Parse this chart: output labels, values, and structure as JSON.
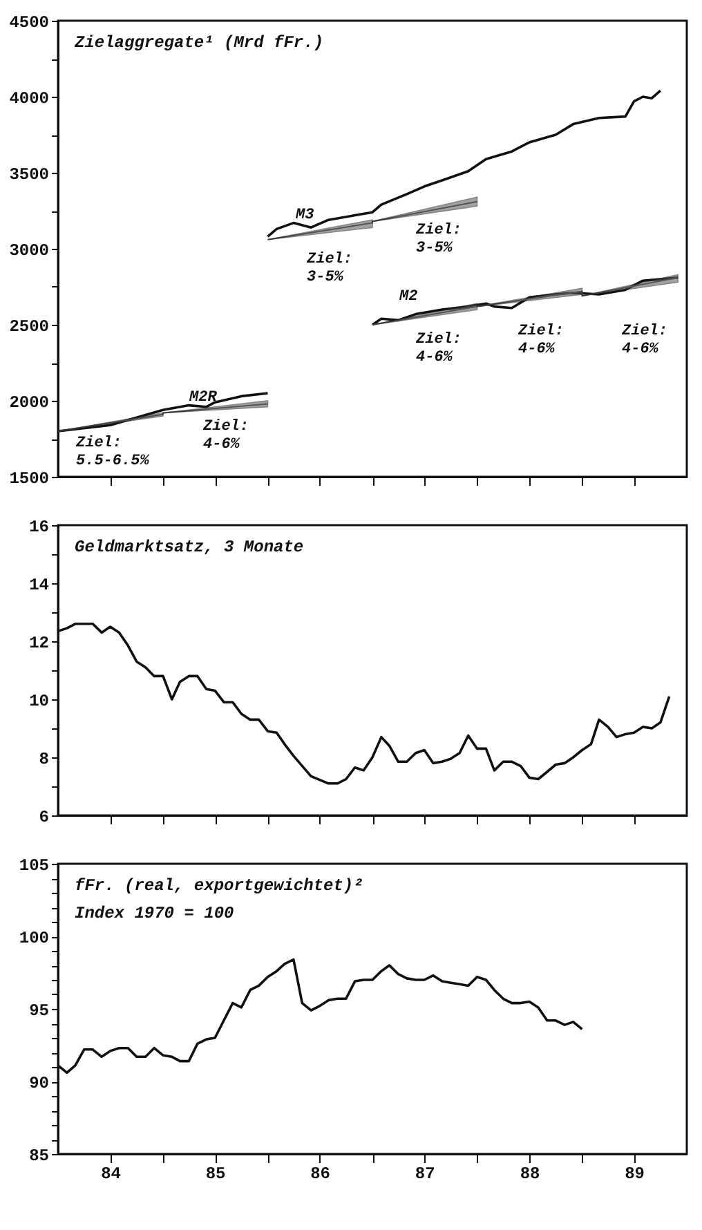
{
  "chart_data": [
    {
      "type": "line",
      "title": "Zielaggregate¹ (Mrd fFr.)",
      "xlim": [
        "1984-01",
        "1990-01"
      ],
      "ylim": [
        1500,
        4500
      ],
      "tick_labels": "y",
      "xticks": [
        {
          "value": "1984-07",
          "label": null
        },
        {
          "value": "1985-01",
          "label": null
        },
        {
          "value": "1985-07",
          "label": null
        },
        {
          "value": "1986-01",
          "label": null
        },
        {
          "value": "1986-07",
          "label": null
        },
        {
          "value": "1987-01",
          "label": null
        },
        {
          "value": "1987-07",
          "label": null
        },
        {
          "value": "1988-01",
          "label": null
        },
        {
          "value": "1988-07",
          "label": null
        },
        {
          "value": "1989-01",
          "label": null
        },
        {
          "value": "1989-07",
          "label": null
        }
      ],
      "yticks": [
        1500,
        {
          "value": 1750,
          "label": null
        },
        2000,
        {
          "value": 2250,
          "label": null
        },
        2500,
        {
          "value": 2750,
          "label": null
        },
        3000,
        {
          "value": 3250,
          "label": null
        },
        3500,
        {
          "value": 3750,
          "label": null
        },
        4000,
        {
          "value": 4250,
          "label": null
        },
        4500
      ],
      "series": [
        {
          "color": "#111111",
          "x": [
            "1984-01",
            "1984-07",
            "1984-10",
            "1985-01",
            "1985-04",
            "1985-06",
            "1985-07",
            "1985-10",
            "1986-01"
          ],
          "values": [
            1800,
            1840,
            1890,
            1940,
            1970,
            1960,
            1990,
            2030,
            2050
          ]
        },
        {
          "color": "#111111",
          "x": [
            "1986-01",
            "1986-02",
            "1986-04",
            "1986-06",
            "1986-08",
            "1986-11",
            "1987-01",
            "1987-02",
            "1987-05",
            "1987-07",
            "1987-09",
            "1987-12",
            "1988-02",
            "1988-05",
            "1988-07",
            "1988-10",
            "1988-12",
            "1989-03",
            "1989-06",
            "1989-07",
            "1989-08",
            "1989-09",
            "1989-10"
          ],
          "values": [
            3080,
            3130,
            3170,
            3140,
            3190,
            3220,
            3240,
            3290,
            3360,
            3410,
            3450,
            3510,
            3590,
            3640,
            3700,
            3750,
            3820,
            3860,
            3870,
            3970,
            4000,
            3990,
            4040
          ]
        },
        {
          "color": "#111111",
          "x": [
            "1987-01",
            "1987-02",
            "1987-04",
            "1987-06",
            "1987-09",
            "1987-12",
            "1988-02",
            "1988-03",
            "1988-05",
            "1988-07",
            "1988-10",
            "1988-12",
            "1989-03",
            "1989-06",
            "1989-08",
            "1989-12"
          ],
          "values": [
            2500,
            2540,
            2530,
            2570,
            2600,
            2620,
            2640,
            2620,
            2610,
            2680,
            2700,
            2710,
            2700,
            2730,
            2790,
            2810
          ]
        },
        {
          "color": "#555555",
          "x": [
            "1984-01",
            "1985-01",
            "1985-01",
            "1986-01"
          ],
          "values": [
            1800,
            1910,
            1920,
            1980
          ],
          "lower": [
            1800,
            1900,
            1920,
            1960
          ],
          "upper": [
            1800,
            1920,
            1920,
            2000
          ]
        },
        {
          "color": "#555555",
          "x": [
            "1986-01",
            "1987-01",
            "1987-01",
            "1988-01"
          ],
          "values": [
            3060,
            3170,
            3180,
            3310
          ],
          "lower": [
            3060,
            3140,
            3180,
            3280
          ],
          "upper": [
            3060,
            3190,
            3180,
            3340
          ]
        },
        {
          "color": "#555555",
          "x": [
            "1987-01",
            "1988-01",
            "1988-01",
            "1989-01",
            "1989-01",
            "1989-12"
          ],
          "values": [
            2500,
            2620,
            2620,
            2720,
            2690,
            2810
          ],
          "lower": [
            2500,
            2600,
            2620,
            2700,
            2690,
            2780
          ],
          "upper": [
            2500,
            2640,
            2620,
            2740,
            2690,
            2830
          ]
        }
      ],
      "annotations": [
        "Ziel:\n5.5-6.5%",
        "M2R",
        "Ziel:\n4-6%",
        "M3",
        "Ziel:\n3-5%",
        "Ziel:\n3-5%",
        "M2",
        "Ziel:\n4-6%",
        "Ziel:\n4-6%",
        "Ziel:\n4-6%"
      ]
    },
    {
      "type": "line",
      "title": "Geldmarktsatz, 3 Monate",
      "xlim": [
        "1984-01",
        "1990-01"
      ],
      "ylim": [
        6,
        16
      ],
      "tick_labels": "y",
      "xticks": [
        {
          "value": "1984-07",
          "label": null
        },
        {
          "value": "1985-01",
          "label": null
        },
        {
          "value": "1985-07",
          "label": null
        },
        {
          "value": "1986-01",
          "label": null
        },
        {
          "value": "1986-07",
          "label": null
        },
        {
          "value": "1987-01",
          "label": null
        },
        {
          "value": "1987-07",
          "label": null
        },
        {
          "value": "1988-01",
          "label": null
        },
        {
          "value": "1988-07",
          "label": null
        },
        {
          "value": "1989-01",
          "label": null
        },
        {
          "value": "1989-07",
          "label": null
        }
      ],
      "yticks": [
        6,
        {
          "value": 7,
          "label": null
        },
        8,
        {
          "value": 9,
          "label": null
        },
        10,
        {
          "value": 11,
          "label": null
        },
        12,
        {
          "value": 13,
          "label": null
        },
        14,
        {
          "value": 15,
          "label": null
        },
        16
      ],
      "series": [
        {
          "color": "#111111",
          "x": [
            "1984-01",
            "1984-02",
            "1984-03",
            "1984-05",
            "1984-06",
            "1984-07",
            "1984-08",
            "1984-09",
            "1984-10",
            "1984-11",
            "1984-12",
            "1985-01",
            "1985-02",
            "1985-03",
            "1985-04",
            "1985-05",
            "1985-06",
            "1985-07",
            "1985-08",
            "1985-09",
            "1985-10",
            "1985-11",
            "1985-12",
            "1986-01",
            "1986-02",
            "1986-03",
            "1986-04",
            "1986-06",
            "1986-08",
            "1986-09",
            "1986-10",
            "1986-11",
            "1986-12",
            "1987-01",
            "1987-02",
            "1987-03",
            "1987-04",
            "1987-05",
            "1987-06",
            "1987-07",
            "1987-08",
            "1987-09",
            "1987-10",
            "1987-11",
            "1987-12",
            "1988-01",
            "1988-02",
            "1988-03",
            "1988-04",
            "1988-05",
            "1988-06",
            "1988-07",
            "1988-08",
            "1988-09",
            "1988-10",
            "1988-11",
            "1988-12",
            "1989-01",
            "1989-02",
            "1989-03",
            "1989-04",
            "1989-05",
            "1989-06",
            "1989-07",
            "1989-08",
            "1989-09",
            "1989-10",
            "1989-11"
          ],
          "values": [
            12.35,
            12.45,
            12.6,
            12.6,
            12.3,
            12.5,
            12.3,
            11.85,
            11.3,
            11.1,
            10.8,
            10.8,
            10.0,
            10.6,
            10.8,
            10.8,
            10.35,
            10.3,
            9.9,
            9.9,
            9.5,
            9.3,
            9.3,
            8.9,
            8.85,
            8.45,
            8.05,
            7.35,
            7.1,
            7.1,
            7.25,
            7.65,
            7.55,
            8.0,
            8.7,
            8.4,
            7.85,
            7.85,
            8.15,
            8.25,
            7.8,
            7.85,
            7.95,
            8.15,
            8.75,
            8.3,
            8.3,
            7.55,
            7.85,
            7.85,
            7.7,
            7.3,
            7.25,
            7.5,
            7.75,
            7.8,
            8.0,
            8.25,
            8.45,
            9.3,
            9.05,
            8.7,
            8.8,
            8.85,
            9.05,
            9.0,
            9.2,
            10.1
          ]
        }
      ]
    },
    {
      "type": "line",
      "title": "fFr. (real, exportgewichtet)²",
      "subtitle": "Index 1970 = 100",
      "xlim": [
        "1984-01",
        "1990-01"
      ],
      "ylim": [
        85,
        105
      ],
      "xticks": [
        {
          "value": "1984-07",
          "label": "84"
        },
        {
          "value": "1985-01",
          "label": null
        },
        {
          "value": "1985-07",
          "label": "85"
        },
        {
          "value": "1986-01",
          "label": null
        },
        {
          "value": "1986-07",
          "label": "86"
        },
        {
          "value": "1987-01",
          "label": null
        },
        {
          "value": "1987-07",
          "label": "87"
        },
        {
          "value": "1988-01",
          "label": null
        },
        {
          "value": "1988-07",
          "label": "88"
        },
        {
          "value": "1989-01",
          "label": null
        },
        {
          "value": "1989-07",
          "label": "89"
        }
      ],
      "yticks": [
        85,
        {
          "value": 86,
          "label": null
        },
        {
          "value": 87,
          "label": null
        },
        {
          "value": 88,
          "label": null
        },
        {
          "value": 89,
          "label": null
        },
        90,
        {
          "value": 91,
          "label": null
        },
        {
          "value": 92,
          "label": null
        },
        {
          "value": 93,
          "label": null
        },
        {
          "value": 94,
          "label": null
        },
        95,
        {
          "value": 96,
          "label": null
        },
        {
          "value": 97,
          "label": null
        },
        {
          "value": 98,
          "label": null
        },
        {
          "value": 99,
          "label": null
        },
        100,
        {
          "value": 101,
          "label": null
        },
        {
          "value": 102,
          "label": null
        },
        {
          "value": 103,
          "label": null
        },
        {
          "value": 104,
          "label": null
        },
        105
      ],
      "series": [
        {
          "color": "#111111",
          "x": [
            "1984-01",
            "1984-02",
            "1984-03",
            "1984-04",
            "1984-05",
            "1984-06",
            "1984-07",
            "1984-08",
            "1984-09",
            "1984-10",
            "1984-11",
            "1984-12",
            "1985-01",
            "1985-02",
            "1985-03",
            "1985-04",
            "1985-05",
            "1985-06",
            "1985-07",
            "1985-08",
            "1985-09",
            "1985-10",
            "1985-11",
            "1985-12",
            "1986-01",
            "1986-02",
            "1986-03",
            "1986-04",
            "1986-05",
            "1986-06",
            "1986-07",
            "1986-08",
            "1986-09",
            "1986-10",
            "1986-11",
            "1986-12",
            "1987-01",
            "1987-02",
            "1987-03",
            "1987-04",
            "1987-05",
            "1987-06",
            "1987-07",
            "1987-08",
            "1987-09",
            "1987-10",
            "1987-11",
            "1987-12",
            "1988-01",
            "1988-02",
            "1988-03",
            "1988-04",
            "1988-05",
            "1988-06",
            "1988-07",
            "1988-08",
            "1988-09",
            "1988-10",
            "1988-11",
            "1988-12",
            "1989-01"
          ],
          "values": [
            91.1,
            90.6,
            91.1,
            92.2,
            92.2,
            91.7,
            92.1,
            92.3,
            92.3,
            91.7,
            91.7,
            92.3,
            91.8,
            91.7,
            91.4,
            91.4,
            92.6,
            92.9,
            93.0,
            94.2,
            95.4,
            95.1,
            96.3,
            96.6,
            97.2,
            97.6,
            98.1,
            98.4,
            95.4,
            94.9,
            95.2,
            95.6,
            95.7,
            95.7,
            96.9,
            97.0,
            97.0,
            97.6,
            98.0,
            97.4,
            97.1,
            97.0,
            97.0,
            97.3,
            96.9,
            96.8,
            96.7,
            96.6,
            97.2,
            97.0,
            96.3,
            95.7,
            95.4,
            95.4,
            95.5,
            95.1,
            94.2,
            94.2,
            93.9,
            94.1,
            93.6
          ]
        }
      ]
    }
  ]
}
